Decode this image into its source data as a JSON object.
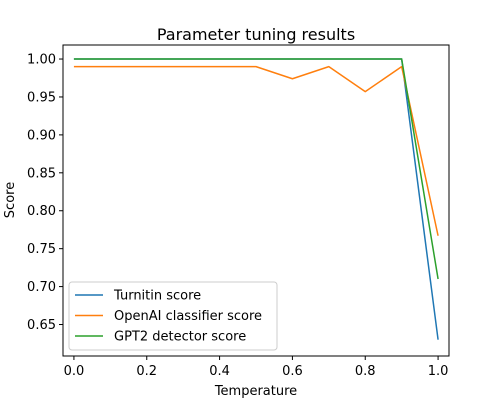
{
  "chart_data": {
    "type": "line",
    "title": "Parameter tuning results",
    "xlabel": "Temperature",
    "ylabel": "Score",
    "xlim": [
      -0.03,
      1.03
    ],
    "ylim": [
      0.6085,
      1.0185
    ],
    "xticks": [
      0.0,
      0.2,
      0.4,
      0.6,
      0.8,
      1.0
    ],
    "xtick_labels": [
      "0.0",
      "0.2",
      "0.4",
      "0.6",
      "0.8",
      "1.0"
    ],
    "yticks": [
      0.65,
      0.7,
      0.75,
      0.8,
      0.85,
      0.9,
      0.95,
      1.0
    ],
    "ytick_labels": [
      "0.65",
      "0.70",
      "0.75",
      "0.80",
      "0.85",
      "0.90",
      "0.95",
      "1.00"
    ],
    "grid": false,
    "legend_position": "bottom-left",
    "series": [
      {
        "name": "Turnitin score",
        "color": "#1f77b4",
        "x": [
          0.0,
          0.1,
          0.2,
          0.3,
          0.4,
          0.5,
          0.6,
          0.7,
          0.8,
          0.9,
          1.0
        ],
        "y": [
          1.0,
          1.0,
          1.0,
          1.0,
          1.0,
          1.0,
          1.0,
          1.0,
          1.0,
          1.0,
          0.63
        ]
      },
      {
        "name": "OpenAI classifier score",
        "color": "#ff7f0e",
        "x": [
          0.0,
          0.1,
          0.2,
          0.3,
          0.4,
          0.5,
          0.6,
          0.7,
          0.8,
          0.9,
          1.0
        ],
        "y": [
          0.99,
          0.99,
          0.99,
          0.99,
          0.99,
          0.99,
          0.974,
          0.99,
          0.957,
          0.99,
          0.767
        ]
      },
      {
        "name": "GPT2 detector score",
        "color": "#2ca02c",
        "x": [
          0.0,
          0.1,
          0.2,
          0.3,
          0.4,
          0.5,
          0.6,
          0.7,
          0.8,
          0.9,
          1.0
        ],
        "y": [
          1.0,
          1.0,
          1.0,
          1.0,
          1.0,
          1.0,
          1.0,
          1.0,
          1.0,
          1.0,
          0.71
        ]
      }
    ]
  }
}
